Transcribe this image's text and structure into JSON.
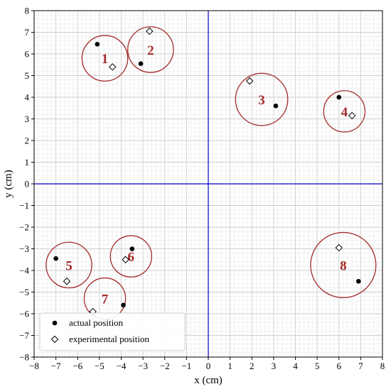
{
  "chart_data": {
    "type": "scatter",
    "xlabel": "x (cm)",
    "ylabel": "y (cm)",
    "xlim": [
      -8,
      8
    ],
    "ylim": [
      -8,
      8
    ],
    "major_ticks": [
      -8,
      -7,
      -6,
      -5,
      -4,
      -3,
      -2,
      -1,
      0,
      1,
      2,
      3,
      4,
      5,
      6,
      7,
      8
    ],
    "minor_step": 0.2,
    "grid": true,
    "legend_position": "bottom-left",
    "colors": {
      "circle": "#a52a2a",
      "axis_lines": "#0000cc",
      "grid_major": "#cccccc",
      "grid_minor": "#ececec",
      "marker": "#000000"
    },
    "series": [
      {
        "name": "actual position",
        "marker": "filled-circle",
        "points": [
          {
            "x": -5.1,
            "y": 6.45
          },
          {
            "x": -3.1,
            "y": 5.55
          },
          {
            "x": 3.1,
            "y": 3.6
          },
          {
            "x": 6.0,
            "y": 4.0
          },
          {
            "x": -7.0,
            "y": -3.45
          },
          {
            "x": -3.5,
            "y": -3.0
          },
          {
            "x": -3.9,
            "y": -5.6
          },
          {
            "x": 6.9,
            "y": -4.5
          }
        ]
      },
      {
        "name": "experimental position",
        "marker": "open-diamond",
        "points": [
          {
            "x": -4.4,
            "y": 5.4
          },
          {
            "x": -2.7,
            "y": 7.05
          },
          {
            "x": 1.9,
            "y": 4.75
          },
          {
            "x": 6.6,
            "y": 3.15
          },
          {
            "x": -6.5,
            "y": -4.5
          },
          {
            "x": -3.8,
            "y": -3.5
          },
          {
            "x": -5.3,
            "y": -5.9
          },
          {
            "x": 6.0,
            "y": -2.95
          }
        ]
      }
    ],
    "circles": [
      {
        "label": "1",
        "cx": -4.75,
        "cy": 5.8,
        "r": 1.05
      },
      {
        "label": "2",
        "cx": -2.65,
        "cy": 6.2,
        "r": 1.05
      },
      {
        "label": "3",
        "cx": 2.45,
        "cy": 3.9,
        "r": 1.2
      },
      {
        "label": "4",
        "cx": 6.25,
        "cy": 3.35,
        "r": 0.95
      },
      {
        "label": "5",
        "cx": -6.4,
        "cy": -3.75,
        "r": 1.05
      },
      {
        "label": "6",
        "cx": -3.55,
        "cy": -3.35,
        "r": 0.95
      },
      {
        "label": "7",
        "cx": -4.75,
        "cy": -5.3,
        "r": 0.95
      },
      {
        "label": "8",
        "cx": 6.2,
        "cy": -3.75,
        "r": 1.5
      }
    ]
  }
}
